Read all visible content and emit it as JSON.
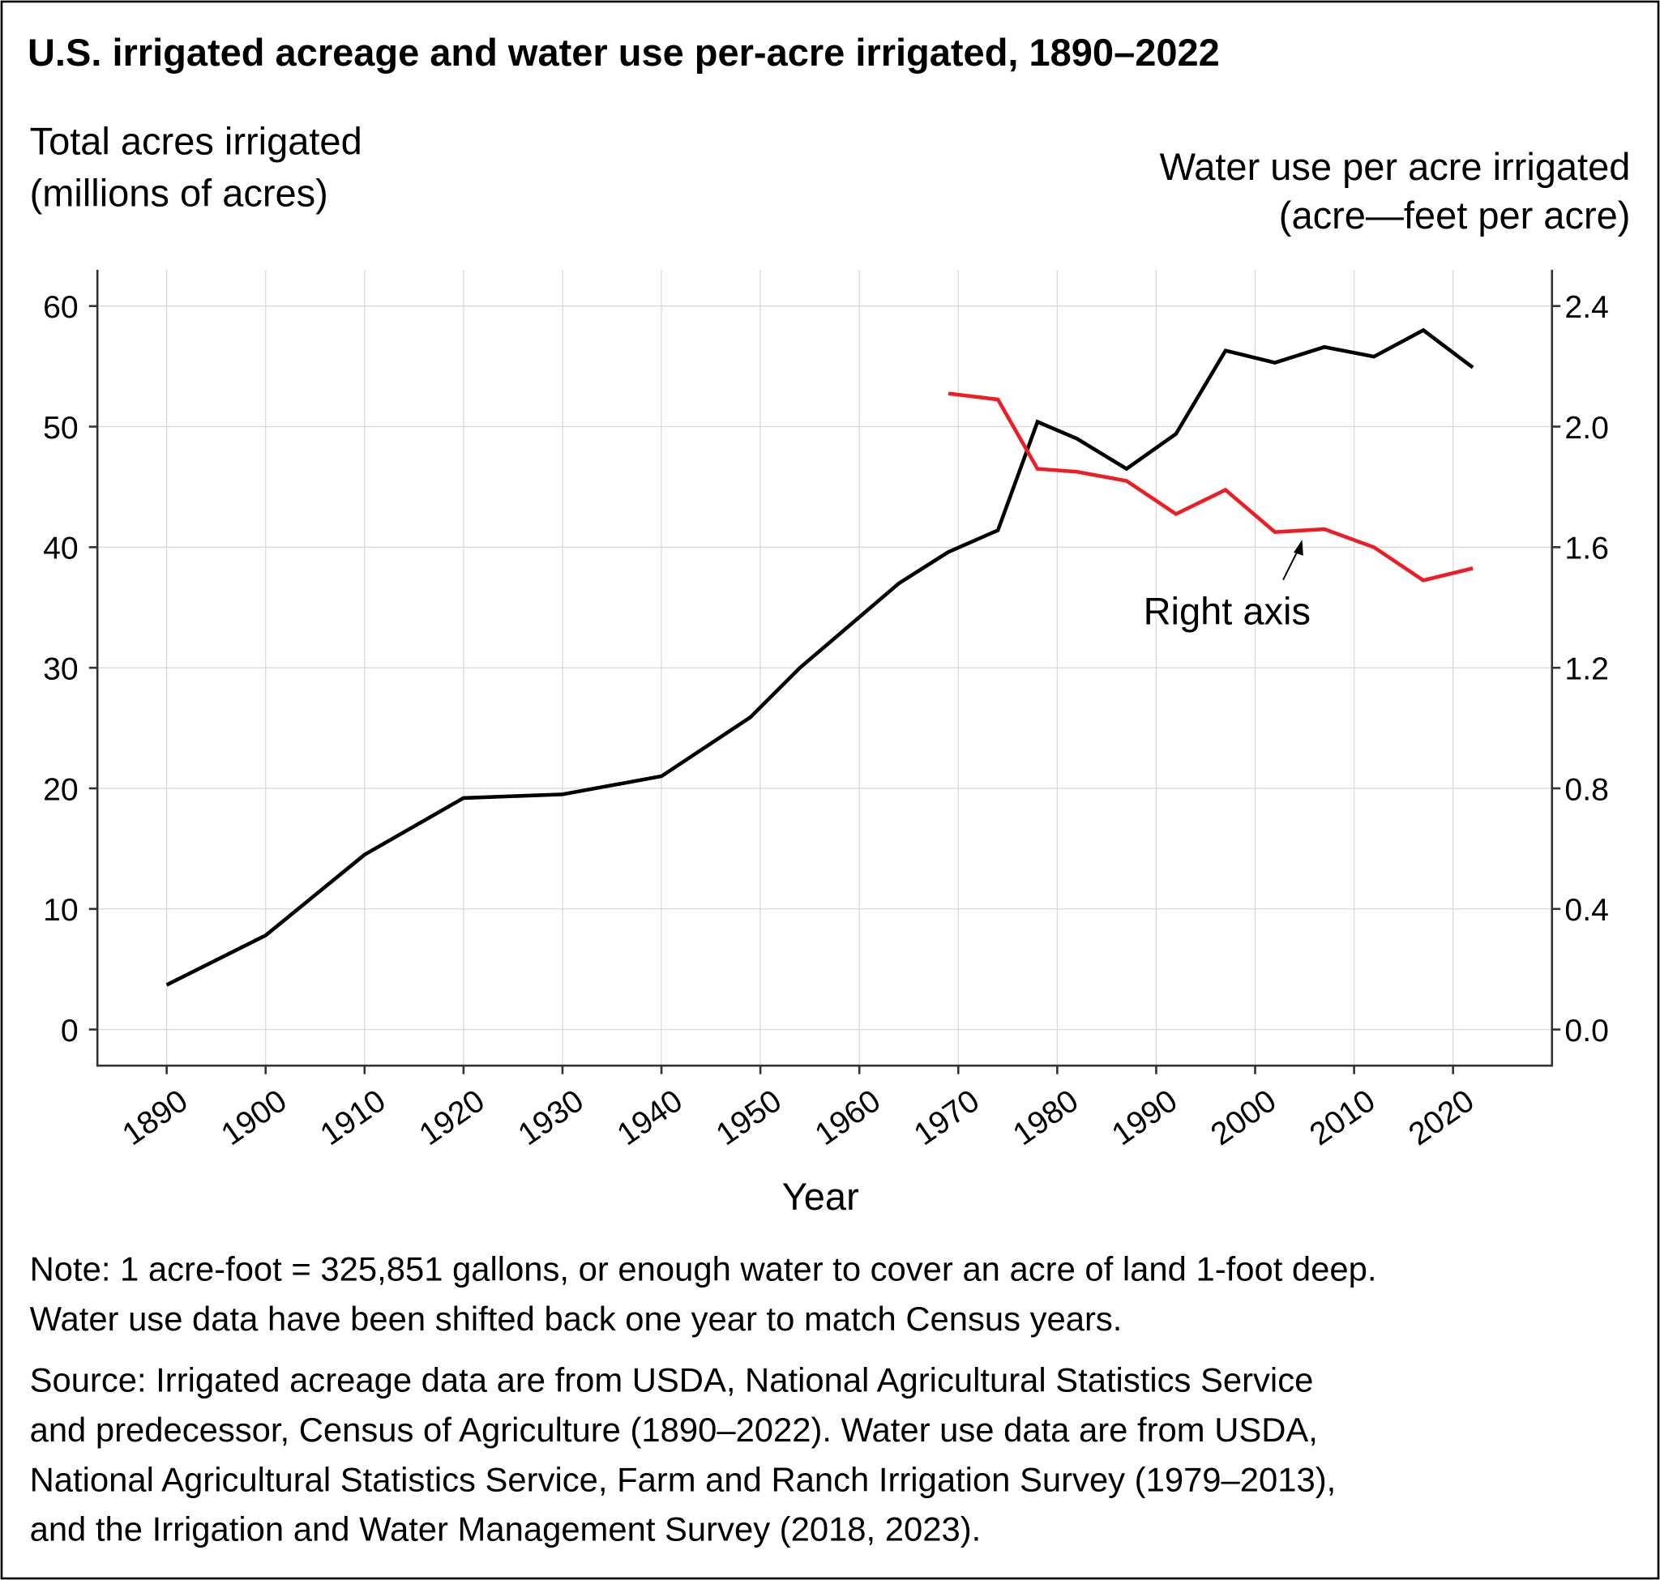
{
  "chart_data": {
    "type": "line",
    "title": "U.S. irrigated acreage and water use per-acre irrigated, 1890–2022",
    "ylabel_left": [
      "Total acres irrigated",
      "(millions of acres)"
    ],
    "ylabel_right": [
      "Water use per acre irrigated",
      "(acre—feet per acre)"
    ],
    "xlabel": "Year",
    "xlim": [
      1883,
      2030
    ],
    "ylim_left": [
      -3,
      63
    ],
    "ylim_right": [
      -0.12,
      2.52
    ],
    "x_ticks": [
      "1890",
      "1900",
      "1910",
      "1920",
      "1930",
      "1940",
      "1950",
      "1960",
      "1970",
      "1980",
      "1990",
      "2000",
      "2010",
      "2020"
    ],
    "y_ticks_left": [
      "0",
      "10",
      "20",
      "30",
      "40",
      "50",
      "60"
    ],
    "y_ticks_right": [
      "0.0",
      "0.4",
      "0.8",
      "1.2",
      "1.6",
      "2.0",
      "2.4"
    ],
    "grid": true,
    "series": [
      {
        "axis": "left",
        "color": "#000000",
        "x": [
          1890,
          1900,
          1910,
          1920,
          1930,
          1940,
          1949,
          1954,
          1959,
          1964,
          1969,
          1974,
          1978,
          1982,
          1987,
          1992,
          1997,
          2002,
          2007,
          2012,
          2017,
          2022
        ],
        "values": [
          3.7,
          7.8,
          14.5,
          19.2,
          19.5,
          21.0,
          25.9,
          30.0,
          33.5,
          37.0,
          39.6,
          41.4,
          50.4,
          49.0,
          46.5,
          49.4,
          56.3,
          55.3,
          56.6,
          55.8,
          58.0,
          54.9
        ]
      },
      {
        "axis": "right",
        "color": "#ee1c25",
        "x": [
          1969,
          1974,
          1978,
          1982,
          1987,
          1992,
          1997,
          2002,
          2007,
          2012,
          2017,
          2022
        ],
        "values": [
          2.11,
          2.09,
          1.86,
          1.85,
          1.82,
          1.71,
          1.79,
          1.65,
          1.66,
          1.6,
          1.49,
          1.53
        ]
      }
    ],
    "annotations": [
      {
        "text": "Right axis",
        "points_to_x": 2005,
        "points_to_axis": "right",
        "points_to_value": 1.62
      }
    ]
  },
  "notes": [
    "Note: 1 acre-foot = 325,851 gallons, or enough water to cover an acre of land 1-foot deep.",
    "Water use data have been shifted back one year to match Census years.",
    "Source: Irrigated acreage data are from USDA, National Agricultural Statistics Service",
    "and predecessor, Census of Agriculture (1890–2022). Water use data are from USDA,",
    "National Agricultural Statistics Service, Farm and Ranch Irrigation Survey (1979–2013),",
    "and the Irrigation and Water Management Survey (2018, 2023)."
  ]
}
